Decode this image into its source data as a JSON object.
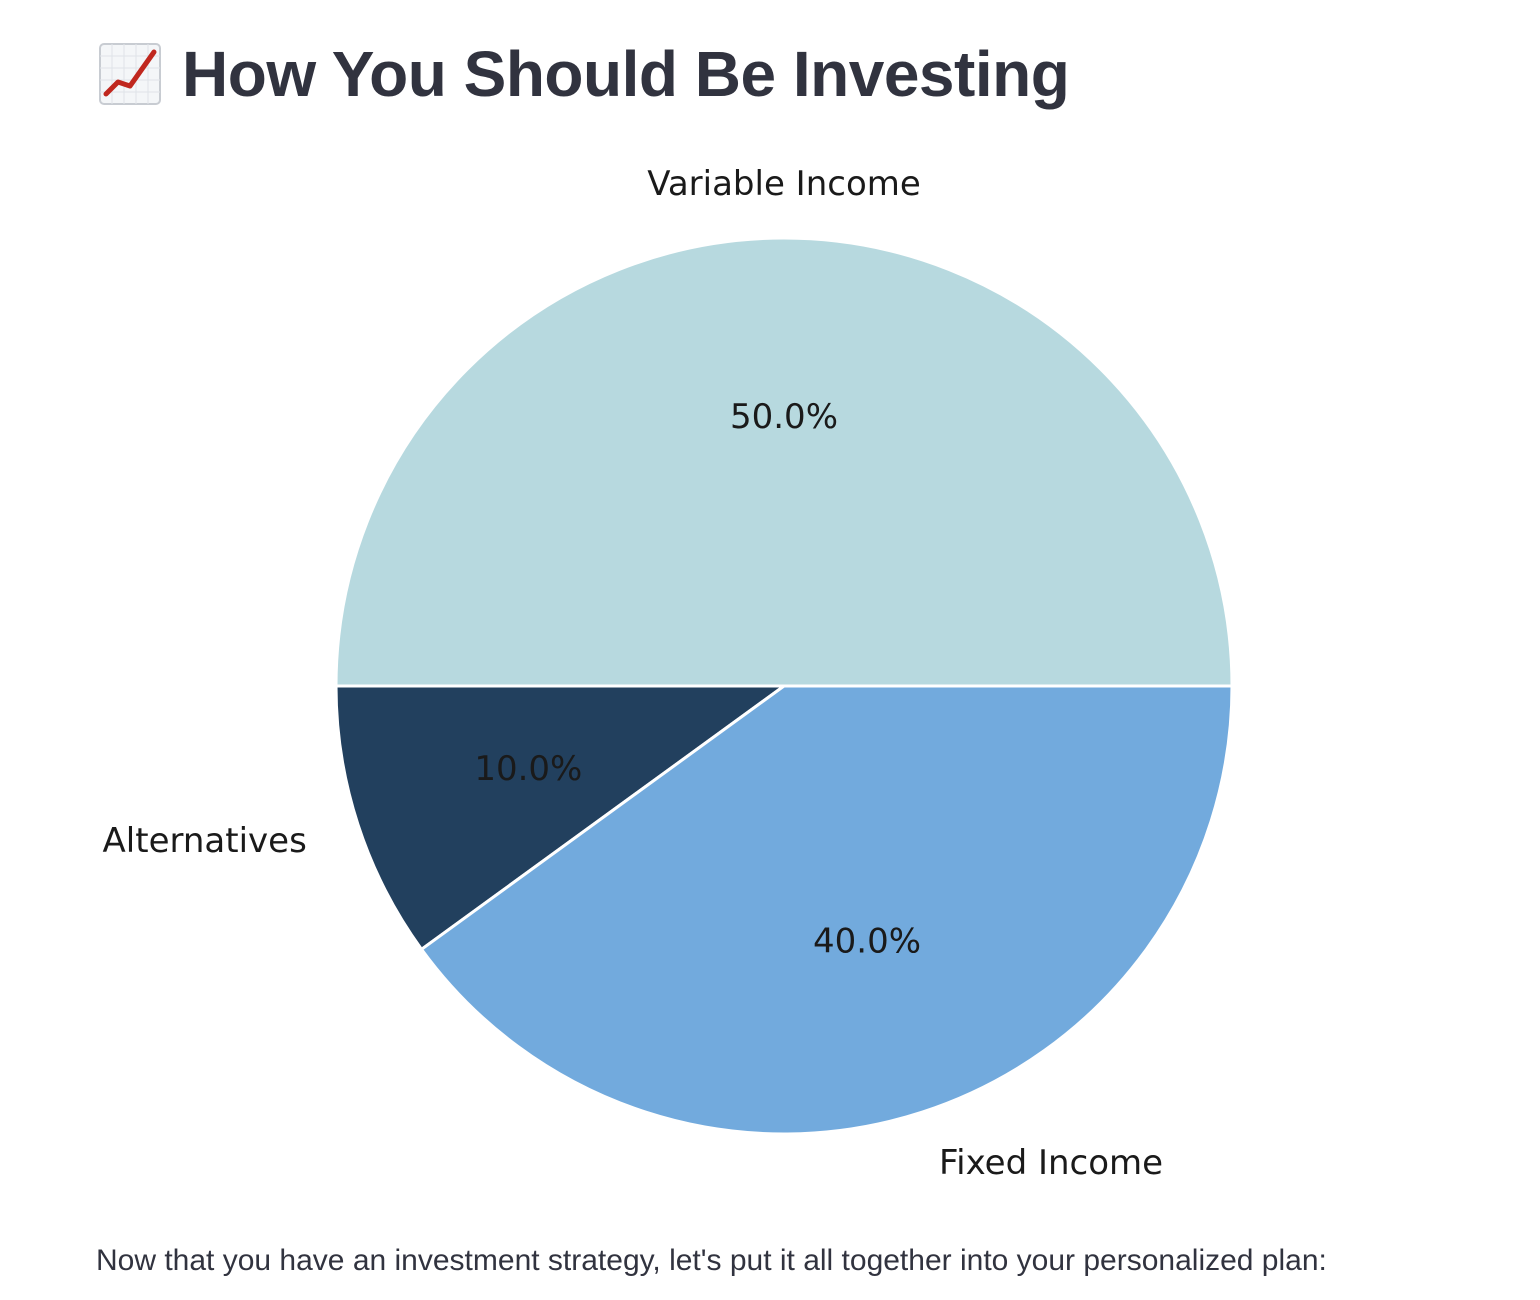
{
  "header": {
    "icon": "chart-increasing-icon",
    "title": "How You Should Be Investing"
  },
  "chart_data": {
    "type": "pie",
    "slices": [
      {
        "label": "Variable Income",
        "value": 50.0,
        "pct_label": "50.0%",
        "color": "#b7d9df"
      },
      {
        "label": "Alternatives",
        "value": 10.0,
        "pct_label": "10.0%",
        "color": "#22405e"
      },
      {
        "label": "Fixed Income",
        "value": 40.0,
        "pct_label": "40.0%",
        "color": "#72aadd"
      }
    ],
    "start_angle_deg": 0,
    "direction": "counterclockwise"
  },
  "caption": "Now that you have an investment strategy, let's put it all together into your personalized plan:"
}
